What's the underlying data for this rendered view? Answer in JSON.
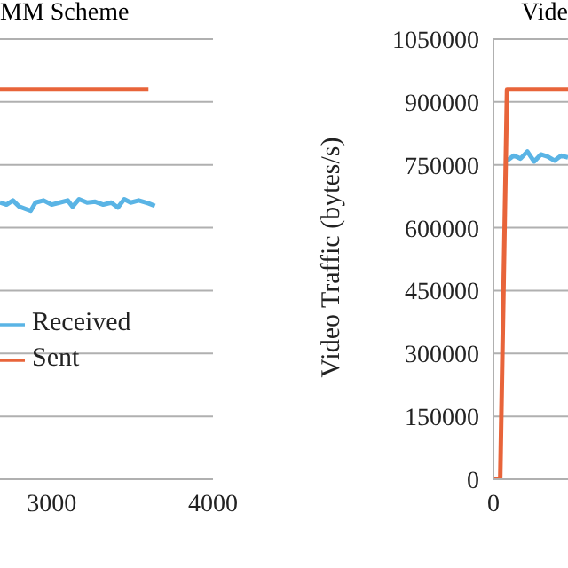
{
  "chart_data": [
    {
      "type": "line",
      "title": "MM Scheme",
      "xlim": [
        2680,
        4000
      ],
      "xticks": [
        3000,
        4000
      ],
      "ylim": [
        0,
        1050000
      ],
      "yticks": [
        0,
        150000,
        300000,
        450000,
        600000,
        750000,
        900000,
        1050000
      ],
      "tick_labels": "x",
      "grid": "y",
      "legend": "bottom left",
      "marker": "none",
      "series": [
        {
          "name": "Received",
          "color": "#5ab4e5",
          "x": [
            2680,
            2720,
            2760,
            2800,
            2870,
            2900,
            2950,
            3000,
            3050,
            3100,
            3130,
            3170,
            3220,
            3270,
            3320,
            3370,
            3410,
            3450,
            3490,
            3540,
            3600,
            3640
          ],
          "values": [
            660000,
            655000,
            665000,
            650000,
            640000,
            660000,
            665000,
            655000,
            660000,
            665000,
            650000,
            668000,
            660000,
            662000,
            655000,
            660000,
            648000,
            668000,
            660000,
            665000,
            658000,
            652000
          ]
        },
        {
          "name": "Sent",
          "color": "#e8643a",
          "x": [
            2680,
            3600
          ],
          "values": [
            930000,
            930000
          ]
        }
      ]
    },
    {
      "type": "line",
      "title": "Vide",
      "ylabel": "Video Traffic (bytes/s)",
      "categories": [
        "0",
        null,
        null,
        null,
        null,
        null,
        null,
        null,
        null,
        null,
        null,
        null
      ],
      "ylim": [
        0,
        1050000
      ],
      "yticks": [
        0,
        150000,
        300000,
        450000,
        600000,
        750000,
        900000,
        1050000
      ],
      "grid": "y",
      "marker": "none",
      "series": [
        {
          "color": "#5ab4e5",
          "values": [
            null,
            null,
            760000,
            772000,
            765000,
            782000,
            758000,
            775000,
            770000,
            760000,
            772000,
            768000
          ]
        },
        {
          "color": "#e8643a",
          "values": [
            0,
            0,
            930000,
            930000,
            930000,
            930000,
            930000,
            930000,
            930000,
            930000,
            930000,
            930000
          ]
        }
      ]
    }
  ]
}
